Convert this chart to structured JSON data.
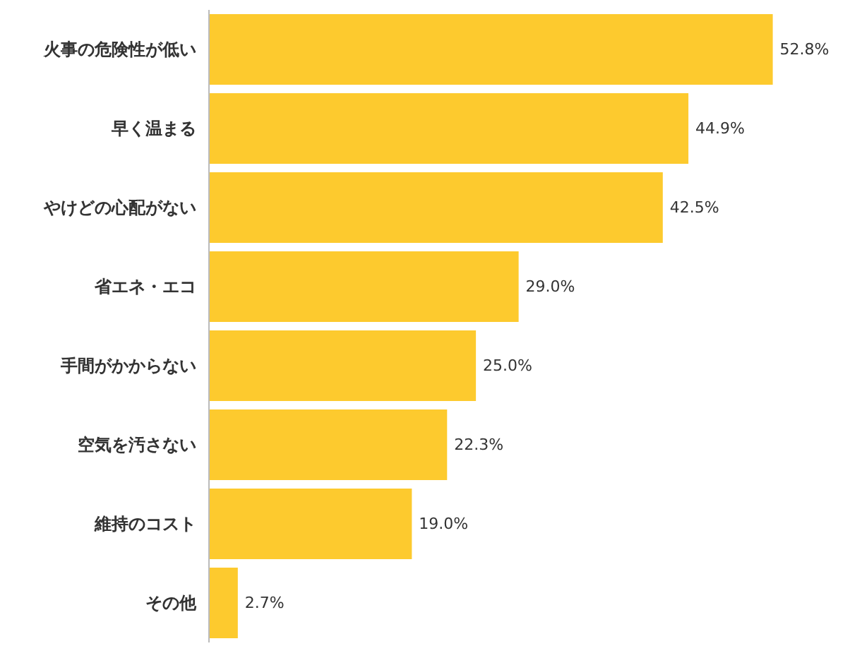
{
  "chart_data": {
    "type": "bar",
    "orientation": "horizontal",
    "categories": [
      "火事の危険性が低い",
      "早く温まる",
      "やけどの心配がない",
      "省エネ・エコ",
      "手間がかからない",
      "空気を汚さない",
      "維持のコスト",
      "その他"
    ],
    "values": [
      52.8,
      44.9,
      42.5,
      29.0,
      25.0,
      22.3,
      19.0,
      2.7
    ],
    "value_labels": [
      "52.8%",
      "44.9%",
      "42.5%",
      "29.0%",
      "25.0%",
      "22.3%",
      "19.0%",
      "2.7%"
    ],
    "color": "#fdca2e"
  }
}
